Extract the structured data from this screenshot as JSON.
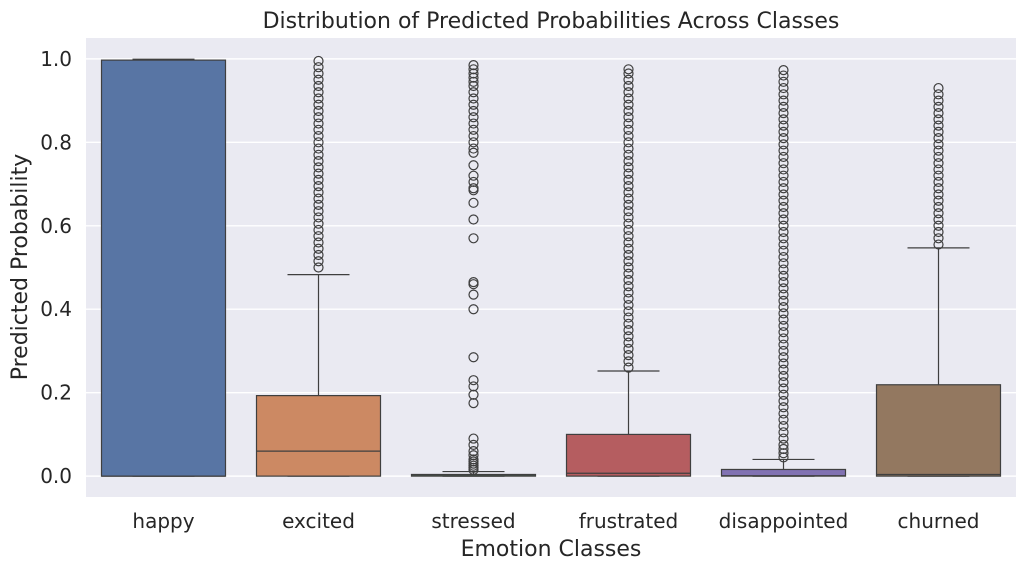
{
  "chart_data": {
    "type": "box",
    "title": "Distribution of Predicted Probabilities Across Classes",
    "xlabel": "Emotion Classes",
    "ylabel": "Predicted Probability",
    "ylim": [
      -0.05,
      1.05
    ],
    "yticks": [
      0.0,
      0.2,
      0.4,
      0.6,
      0.8,
      1.0
    ],
    "ytick_labels": [
      "0.0",
      "0.2",
      "0.4",
      "0.6",
      "0.8",
      "1.0"
    ],
    "grid": true,
    "background": "#eaeaf2",
    "categories": [
      "happy",
      "excited",
      "stressed",
      "frustrated",
      "disappointed",
      "churned"
    ],
    "boxes": [
      {
        "name": "happy",
        "color": "#5875a4",
        "q1": 0.0,
        "median": 0.0,
        "q3": 0.997,
        "whisker_low": 0.0,
        "whisker_high": 0.999,
        "outliers": []
      },
      {
        "name": "excited",
        "color": "#cc8963",
        "q1": 0.0,
        "median": 0.06,
        "q3": 0.193,
        "whisker_low": 0.0,
        "whisker_high": 0.483,
        "outliers": [
          0.5,
          0.515,
          0.53,
          0.545,
          0.56,
          0.575,
          0.59,
          0.605,
          0.62,
          0.635,
          0.65,
          0.665,
          0.68,
          0.695,
          0.71,
          0.725,
          0.74,
          0.755,
          0.77,
          0.785,
          0.8,
          0.815,
          0.83,
          0.845,
          0.86,
          0.875,
          0.89,
          0.905,
          0.92,
          0.935,
          0.95,
          0.965,
          0.98,
          0.995
        ]
      },
      {
        "name": "stressed",
        "color": "#5f9e6e",
        "q1": 0.0,
        "median": 0.001,
        "q3": 0.004,
        "whisker_low": 0.0,
        "whisker_high": 0.011,
        "outliers": [
          0.015,
          0.02,
          0.025,
          0.03,
          0.035,
          0.04,
          0.05,
          0.06,
          0.075,
          0.09,
          0.175,
          0.195,
          0.215,
          0.23,
          0.285,
          0.4,
          0.435,
          0.46,
          0.465,
          0.57,
          0.615,
          0.655,
          0.685,
          0.69,
          0.705,
          0.72,
          0.745,
          0.775,
          0.785,
          0.8,
          0.815,
          0.83,
          0.845,
          0.86,
          0.875,
          0.89,
          0.905,
          0.92,
          0.935,
          0.945,
          0.955,
          0.965,
          0.975,
          0.985
        ]
      },
      {
        "name": "frustrated",
        "color": "#b55d60",
        "q1": 0.0,
        "median": 0.007,
        "q3": 0.1,
        "whisker_low": 0.0,
        "whisker_high": 0.252,
        "outliers": [
          0.26,
          0.275,
          0.29,
          0.305,
          0.32,
          0.335,
          0.35,
          0.365,
          0.38,
          0.395,
          0.41,
          0.425,
          0.44,
          0.455,
          0.47,
          0.485,
          0.5,
          0.515,
          0.53,
          0.545,
          0.56,
          0.575,
          0.59,
          0.605,
          0.62,
          0.635,
          0.65,
          0.665,
          0.68,
          0.695,
          0.71,
          0.725,
          0.74,
          0.755,
          0.77,
          0.785,
          0.8,
          0.815,
          0.83,
          0.845,
          0.86,
          0.875,
          0.89,
          0.905,
          0.92,
          0.935,
          0.95,
          0.965,
          0.975
        ]
      },
      {
        "name": "disappointed",
        "color": "#8172b2",
        "q1": 0.0,
        "median": 0.001,
        "q3": 0.016,
        "whisker_low": 0.0,
        "whisker_high": 0.04,
        "outliers": [
          0.045,
          0.055,
          0.065,
          0.075,
          0.09,
          0.105,
          0.12,
          0.135,
          0.15,
          0.165,
          0.18,
          0.195,
          0.21,
          0.225,
          0.24,
          0.255,
          0.27,
          0.285,
          0.3,
          0.315,
          0.33,
          0.345,
          0.36,
          0.375,
          0.39,
          0.405,
          0.42,
          0.435,
          0.45,
          0.465,
          0.48,
          0.495,
          0.51,
          0.525,
          0.54,
          0.555,
          0.57,
          0.585,
          0.6,
          0.615,
          0.63,
          0.645,
          0.66,
          0.675,
          0.69,
          0.705,
          0.72,
          0.735,
          0.75,
          0.765,
          0.78,
          0.795,
          0.81,
          0.825,
          0.84,
          0.855,
          0.87,
          0.885,
          0.9,
          0.915,
          0.93,
          0.945,
          0.96,
          0.973
        ]
      },
      {
        "name": "churned",
        "color": "#937860",
        "q1": 0.0,
        "median": 0.004,
        "q3": 0.219,
        "whisker_low": 0.0,
        "whisker_high": 0.547,
        "outliers": [
          0.555,
          0.57,
          0.585,
          0.6,
          0.615,
          0.63,
          0.645,
          0.66,
          0.675,
          0.69,
          0.705,
          0.72,
          0.735,
          0.75,
          0.765,
          0.78,
          0.795,
          0.81,
          0.825,
          0.84,
          0.855,
          0.87,
          0.885,
          0.9,
          0.915,
          0.93
        ]
      }
    ]
  }
}
